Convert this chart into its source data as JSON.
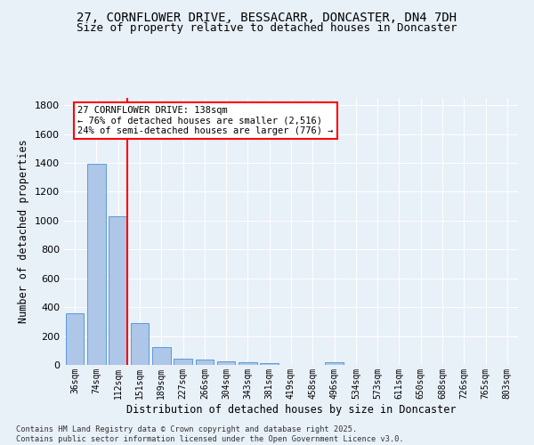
{
  "title_line1": "27, CORNFLOWER DRIVE, BESSACARR, DONCASTER, DN4 7DH",
  "title_line2": "Size of property relative to detached houses in Doncaster",
  "xlabel": "Distribution of detached houses by size in Doncaster",
  "ylabel": "Number of detached properties",
  "footnote": "Contains HM Land Registry data © Crown copyright and database right 2025.\nContains public sector information licensed under the Open Government Licence v3.0.",
  "categories": [
    "36sqm",
    "74sqm",
    "112sqm",
    "151sqm",
    "189sqm",
    "227sqm",
    "266sqm",
    "304sqm",
    "343sqm",
    "381sqm",
    "419sqm",
    "458sqm",
    "496sqm",
    "534sqm",
    "573sqm",
    "611sqm",
    "650sqm",
    "688sqm",
    "726sqm",
    "765sqm",
    "803sqm"
  ],
  "values": [
    360,
    1395,
    1030,
    290,
    125,
    42,
    35,
    25,
    18,
    13,
    0,
    0,
    20,
    0,
    0,
    0,
    0,
    0,
    0,
    0,
    0
  ],
  "bar_color": "#aec6e8",
  "bar_edge_color": "#5b9bd5",
  "vline_color": "red",
  "annotation_text": "27 CORNFLOWER DRIVE: 138sqm\n← 76% of detached houses are smaller (2,516)\n24% of semi-detached houses are larger (776) →",
  "annotation_box_color": "white",
  "annotation_box_edge": "red",
  "ylim": [
    0,
    1850
  ],
  "background_color": "#e8f0f8",
  "grid_color": "white",
  "title_fontsize": 10,
  "subtitle_fontsize": 9
}
